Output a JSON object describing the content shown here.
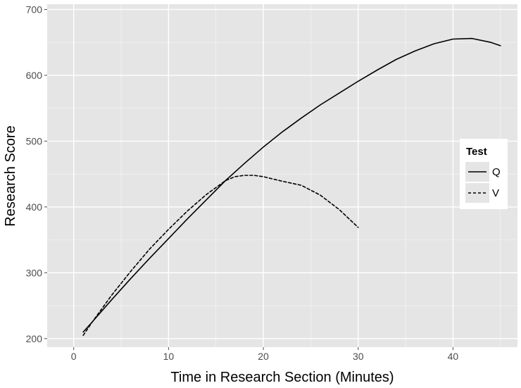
{
  "chart_data": {
    "type": "line",
    "xlabel": "Time in Research Section (Minutes)",
    "ylabel": "Research Score",
    "xlim": [
      -2.8,
      46.8
    ],
    "ylim": [
      187,
      708
    ],
    "xticks": [
      0,
      10,
      20,
      30,
      40
    ],
    "yticks": [
      200,
      300,
      400,
      500,
      600,
      700
    ],
    "grid": true,
    "background_color": "#e5e5e5",
    "grid_color": "#ffffff",
    "legend": {
      "title": "Test",
      "placement": "right"
    },
    "series": [
      {
        "name": "Q",
        "line_style": "solid",
        "x": [
          1,
          2,
          4,
          6,
          8,
          10,
          12,
          14,
          16,
          18,
          20,
          22,
          24,
          26,
          28,
          30,
          32,
          34,
          36,
          38,
          40,
          42,
          44,
          45
        ],
        "y": [
          210,
          226,
          259,
          291,
          322,
          352,
          382,
          411,
          440,
          466,
          491,
          514,
          535,
          555,
          573,
          591,
          608,
          624,
          637,
          648,
          655,
          656,
          650,
          645
        ]
      },
      {
        "name": "V",
        "line_style": "dashed",
        "x": [
          1,
          2,
          4,
          6,
          8,
          10,
          12,
          14,
          16,
          17,
          18,
          19,
          20,
          22,
          24,
          26,
          28,
          30
        ],
        "y": [
          205,
          226,
          266,
          302,
          336,
          366,
          394,
          419,
          440,
          446,
          448,
          448,
          446,
          439,
          433,
          418,
          396,
          369
        ]
      }
    ]
  }
}
